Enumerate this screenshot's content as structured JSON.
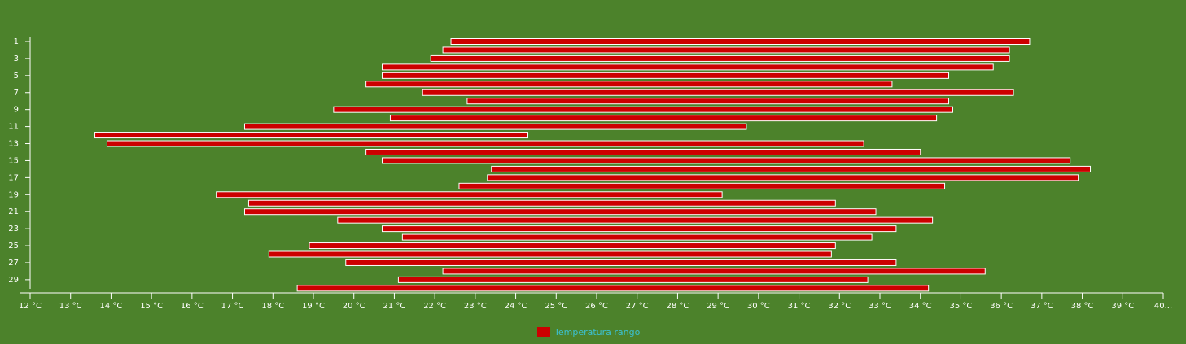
{
  "chart_data": {
    "type": "range-bar",
    "orientation": "horizontal",
    "categories": [
      "1",
      null,
      "3",
      null,
      "5",
      null,
      "7",
      null,
      "9",
      null,
      "11",
      null,
      "13",
      null,
      "15",
      null,
      "17",
      null,
      "19",
      null,
      "21",
      null,
      "23",
      null,
      "25",
      null,
      "27",
      null,
      "29",
      null
    ],
    "series": [
      {
        "name": "Temperatura rango",
        "color": "#cc0000",
        "low": [
          22.4,
          22.2,
          21.9,
          20.7,
          20.7,
          20.3,
          21.7,
          22.8,
          19.5,
          20.9,
          17.3,
          13.6,
          13.9,
          20.3,
          20.7,
          23.4,
          23.3,
          22.6,
          16.6,
          17.4,
          17.3,
          19.6,
          20.7,
          21.2,
          18.9,
          17.9,
          19.8,
          22.2,
          21.1,
          18.6
        ],
        "high": [
          36.7,
          36.2,
          36.2,
          35.8,
          34.7,
          33.3,
          36.3,
          34.7,
          34.8,
          34.4,
          29.7,
          24.3,
          32.6,
          34.0,
          37.7,
          38.2,
          37.9,
          34.6,
          29.1,
          31.9,
          32.9,
          34.3,
          33.4,
          32.8,
          31.9,
          31.8,
          33.4,
          35.6,
          32.7,
          34.2
        ]
      }
    ],
    "xlim": [
      12,
      40
    ],
    "xticks": [
      {
        "value": 12,
        "label": "12 °C"
      },
      {
        "value": 13,
        "label": "13 °C"
      },
      {
        "value": 14,
        "label": "14 °C"
      },
      {
        "value": 15,
        "label": "15 °C"
      },
      {
        "value": 16,
        "label": "16 °C"
      },
      {
        "value": 17,
        "label": "17 °C"
      },
      {
        "value": 18,
        "label": "18 °C"
      },
      {
        "value": 19,
        "label": "19 °C"
      },
      {
        "value": 20,
        "label": "20 °C"
      },
      {
        "value": 21,
        "label": "21 °C"
      },
      {
        "value": 22,
        "label": "22 °C"
      },
      {
        "value": 23,
        "label": "23 °C"
      },
      {
        "value": 24,
        "label": "24 °C"
      },
      {
        "value": 25,
        "label": "25 °C"
      },
      {
        "value": 26,
        "label": "26 °C"
      },
      {
        "value": 27,
        "label": "27 °C"
      },
      {
        "value": 28,
        "label": "28 °C"
      },
      {
        "value": 29,
        "label": "29 °C"
      },
      {
        "value": 30,
        "label": "30 °C"
      },
      {
        "value": 31,
        "label": "31 °C"
      },
      {
        "value": 32,
        "label": "32 °C"
      },
      {
        "value": 33,
        "label": "33 °C"
      },
      {
        "value": 34,
        "label": "34 °C"
      },
      {
        "value": 35,
        "label": "35 °C"
      },
      {
        "value": 36,
        "label": "36 °C"
      },
      {
        "value": 37,
        "label": "37 °C"
      },
      {
        "value": 38,
        "label": "38 °C"
      },
      {
        "value": 39,
        "label": "39 °C"
      },
      {
        "value": 40,
        "label": "40..."
      }
    ],
    "grid": false,
    "legend": "bottom"
  }
}
